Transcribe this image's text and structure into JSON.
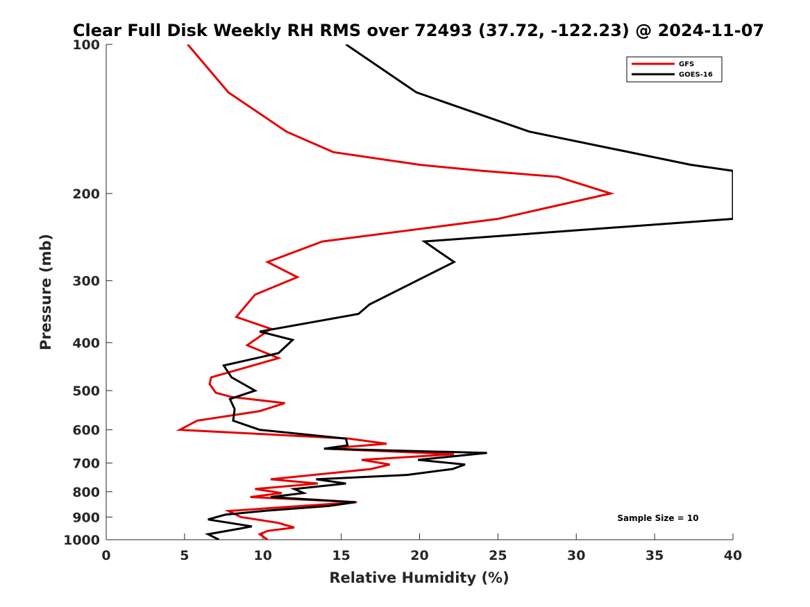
{
  "chart_data": {
    "type": "line",
    "title": "Clear Full Disk Weekly RH RMS over 72493 (37.72, -122.23) @ 2024-11-07",
    "xlabel": "Relative Humidity (%)",
    "ylabel": "Pressure (mb)",
    "xlim": [
      0,
      40
    ],
    "ylim": [
      100,
      1000
    ],
    "yscale": "log",
    "yreverse": true,
    "x_ticks": [
      0,
      5,
      10,
      15,
      20,
      25,
      30,
      35,
      40
    ],
    "y_ticks": [
      100,
      200,
      300,
      400,
      500,
      600,
      700,
      800,
      900,
      1000
    ],
    "grid": false,
    "legend_position": "top-right",
    "annotation": "Sample Size = 10",
    "series": [
      {
        "name": "GFS",
        "color": "#e60000",
        "points": [
          {
            "rh": 5.2,
            "p": 100
          },
          {
            "rh": 7.8,
            "p": 125
          },
          {
            "rh": 11.5,
            "p": 150
          },
          {
            "rh": 14.5,
            "p": 165
          },
          {
            "rh": 20.0,
            "p": 175
          },
          {
            "rh": 24.0,
            "p": 180
          },
          {
            "rh": 28.8,
            "p": 185
          },
          {
            "rh": 32.2,
            "p": 200
          },
          {
            "rh": 25.0,
            "p": 225
          },
          {
            "rh": 13.8,
            "p": 250
          },
          {
            "rh": 10.3,
            "p": 275
          },
          {
            "rh": 12.2,
            "p": 295
          },
          {
            "rh": 9.5,
            "p": 320
          },
          {
            "rh": 8.3,
            "p": 355
          },
          {
            "rh": 10.5,
            "p": 375
          },
          {
            "rh": 9.0,
            "p": 405
          },
          {
            "rh": 11.0,
            "p": 430
          },
          {
            "rh": 6.7,
            "p": 470
          },
          {
            "rh": 6.6,
            "p": 485
          },
          {
            "rh": 7.0,
            "p": 505
          },
          {
            "rh": 8.0,
            "p": 515
          },
          {
            "rh": 11.4,
            "p": 530
          },
          {
            "rh": 9.8,
            "p": 550
          },
          {
            "rh": 5.8,
            "p": 575
          },
          {
            "rh": 4.7,
            "p": 600
          },
          {
            "rh": 10.0,
            "p": 612
          },
          {
            "rh": 15.5,
            "p": 625
          },
          {
            "rh": 17.9,
            "p": 640
          },
          {
            "rh": 14.0,
            "p": 655
          },
          {
            "rh": 22.2,
            "p": 672
          },
          {
            "rh": 16.3,
            "p": 690
          },
          {
            "rh": 18.1,
            "p": 705
          },
          {
            "rh": 16.9,
            "p": 720
          },
          {
            "rh": 10.5,
            "p": 755
          },
          {
            "rh": 13.5,
            "p": 770
          },
          {
            "rh": 9.5,
            "p": 790
          },
          {
            "rh": 11.2,
            "p": 805
          },
          {
            "rh": 9.2,
            "p": 820
          },
          {
            "rh": 16.0,
            "p": 840
          },
          {
            "rh": 7.8,
            "p": 875
          },
          {
            "rh": 8.6,
            "p": 900
          },
          {
            "rh": 11.0,
            "p": 925
          },
          {
            "rh": 12.0,
            "p": 945
          },
          {
            "rh": 10.3,
            "p": 960
          },
          {
            "rh": 9.8,
            "p": 975
          },
          {
            "rh": 10.3,
            "p": 1000
          }
        ]
      },
      {
        "name": "GOES-16",
        "color": "#000000",
        "points": [
          {
            "rh": 15.3,
            "p": 100
          },
          {
            "rh": 19.8,
            "p": 125
          },
          {
            "rh": 27.0,
            "p": 150
          },
          {
            "rh": 37.3,
            "p": 175
          },
          {
            "rh": 40.0,
            "p": 180
          },
          {
            "rh": 40.0,
            "p": 225
          },
          {
            "rh": 20.3,
            "p": 250
          },
          {
            "rh": 22.2,
            "p": 275
          },
          {
            "rh": 16.8,
            "p": 335
          },
          {
            "rh": 16.1,
            "p": 350
          },
          {
            "rh": 9.8,
            "p": 380
          },
          {
            "rh": 11.9,
            "p": 395
          },
          {
            "rh": 11.0,
            "p": 420
          },
          {
            "rh": 7.5,
            "p": 445
          },
          {
            "rh": 8.0,
            "p": 470
          },
          {
            "rh": 9.5,
            "p": 500
          },
          {
            "rh": 7.9,
            "p": 520
          },
          {
            "rh": 8.2,
            "p": 545
          },
          {
            "rh": 8.1,
            "p": 575
          },
          {
            "rh": 9.8,
            "p": 600
          },
          {
            "rh": 15.3,
            "p": 625
          },
          {
            "rh": 15.4,
            "p": 645
          },
          {
            "rh": 13.9,
            "p": 655
          },
          {
            "rh": 24.3,
            "p": 668
          },
          {
            "rh": 19.9,
            "p": 690
          },
          {
            "rh": 22.9,
            "p": 705
          },
          {
            "rh": 22.1,
            "p": 720
          },
          {
            "rh": 19.2,
            "p": 740
          },
          {
            "rh": 13.4,
            "p": 755
          },
          {
            "rh": 15.3,
            "p": 770
          },
          {
            "rh": 12.0,
            "p": 790
          },
          {
            "rh": 12.6,
            "p": 805
          },
          {
            "rh": 10.5,
            "p": 820
          },
          {
            "rh": 15.9,
            "p": 840
          },
          {
            "rh": 14.2,
            "p": 855
          },
          {
            "rh": 10.0,
            "p": 875
          },
          {
            "rh": 7.6,
            "p": 890
          },
          {
            "rh": 6.5,
            "p": 910
          },
          {
            "rh": 9.3,
            "p": 940
          },
          {
            "rh": 8.5,
            "p": 950
          },
          {
            "rh": 6.5,
            "p": 975
          },
          {
            "rh": 7.2,
            "p": 1000
          }
        ]
      }
    ]
  }
}
